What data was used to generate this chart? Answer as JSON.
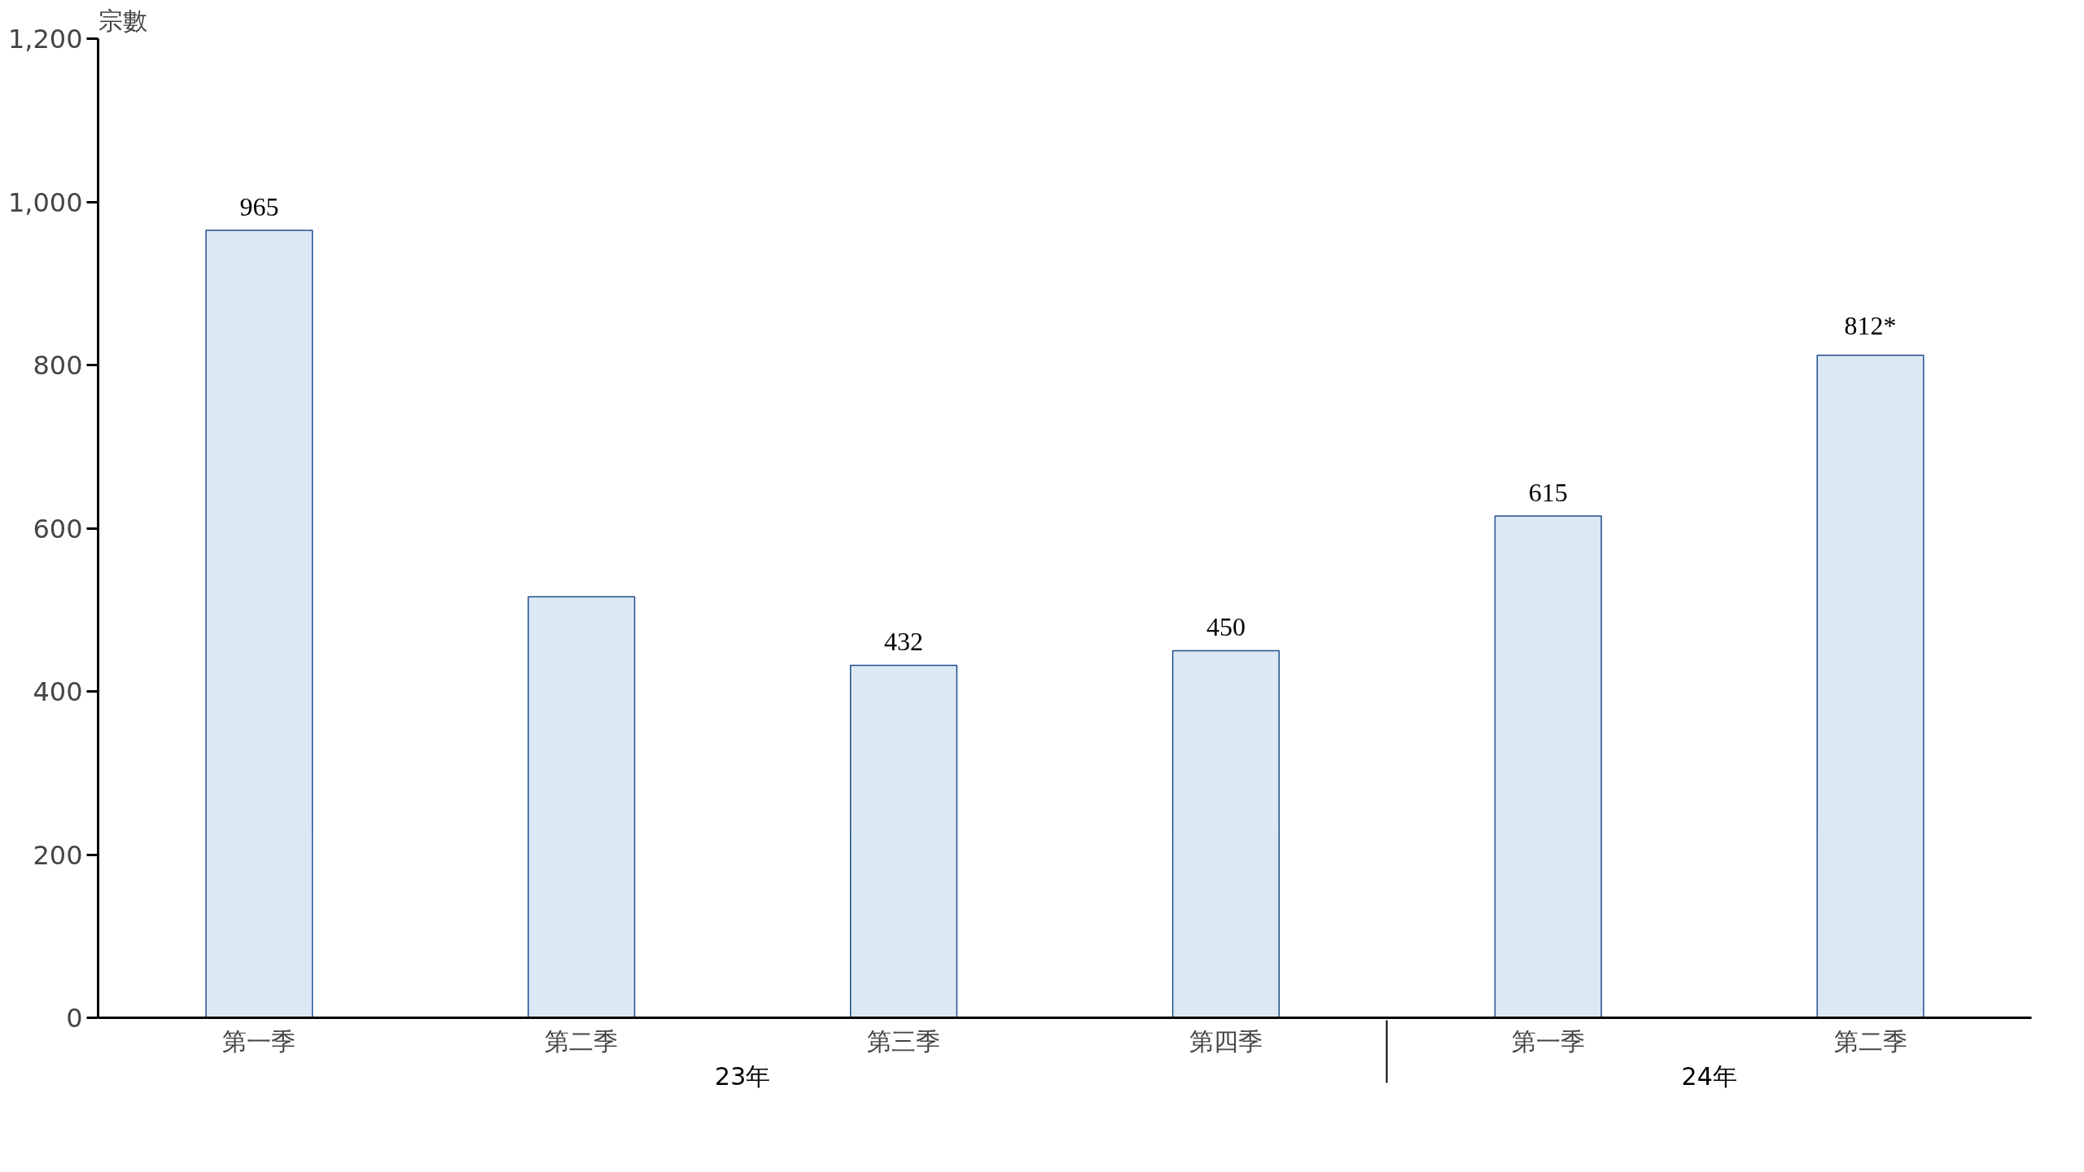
{
  "chart_data": {
    "type": "bar",
    "ylabel": "宗數",
    "categories": [
      "第一季",
      "第二季",
      "第三季",
      "第四季",
      "第一季",
      "第二季"
    ],
    "values": [
      965,
      516,
      432,
      450,
      615,
      812
    ],
    "value_labels": [
      "965",
      null,
      "432",
      "450",
      "615",
      "812*"
    ],
    "color": "#dde8f5",
    "ylim": [
      0,
      1200
    ],
    "yticks": [
      {
        "value": 0,
        "label": "0"
      },
      {
        "value": 200,
        "label": "200"
      },
      {
        "value": 400,
        "label": "400"
      },
      {
        "value": 600,
        "label": "600"
      },
      {
        "value": 800,
        "label": "800"
      },
      {
        "value": 1000,
        "label": "1,000"
      },
      {
        "value": 1200,
        "label": "1,200"
      }
    ],
    "annotations": [
      "23年",
      "24年"
    ],
    "grid": false
  }
}
